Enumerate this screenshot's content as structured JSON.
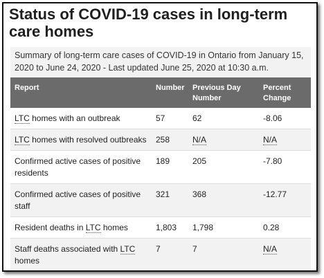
{
  "title": "Status of COVID-19 cases in long-term care homes",
  "caption": "Summary of long-term care cases of COVID-19 in Ontario from January 15, 2020 to June 24, 2020 - Last updated June 25, 2020 at 10:30 a.m.",
  "headers": [
    "Report",
    "Number",
    "Previous Day Number",
    "Percent Change"
  ],
  "rows": [
    {
      "report_pre": "",
      "report_abbr": "LTC",
      "report_post": " homes with an outbreak",
      "number": "57",
      "previous": "62",
      "previous_abbr": false,
      "change": "-8.06",
      "change_abbr": false
    },
    {
      "report_pre": "",
      "report_abbr": "LTC",
      "report_post": " homes with resolved outbreaks",
      "number": "258",
      "previous": "N/A",
      "previous_abbr": true,
      "change": "N/A",
      "change_abbr": true
    },
    {
      "report_pre": "Confirmed active cases of positive residents",
      "report_abbr": "",
      "report_post": "",
      "number": "189",
      "previous": "205",
      "previous_abbr": false,
      "change": "-7.80",
      "change_abbr": false
    },
    {
      "report_pre": "Confirmed active cases of positive staff",
      "report_abbr": "",
      "report_post": "",
      "number": "321",
      "previous": "368",
      "previous_abbr": false,
      "change": "-12.77",
      "change_abbr": false
    },
    {
      "report_pre": "Resident deaths in ",
      "report_abbr": "LTC",
      "report_post": " homes",
      "number": "1,803",
      "previous": "1,798",
      "previous_abbr": false,
      "change": "0.28",
      "change_abbr": false
    },
    {
      "report_pre": "Staff deaths associated with ",
      "report_abbr": "LTC",
      "report_post": " homes",
      "number": "7",
      "previous": "7",
      "previous_abbr": false,
      "change": "N/A",
      "change_abbr": true
    }
  ]
}
